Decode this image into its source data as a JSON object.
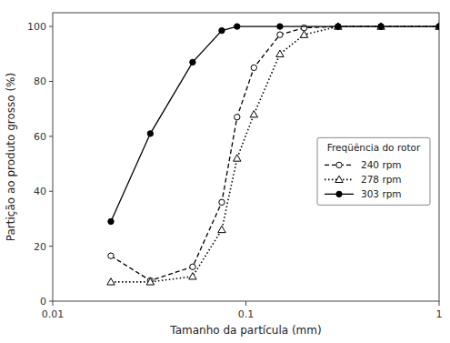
{
  "chart_data": {
    "type": "line",
    "xlabel": "Tamanho da partícula (mm)",
    "ylabel": "Partição ao produto grosso (%)",
    "legend_title": "Freqüência do rotor",
    "series": [
      {
        "name": "240 rpm",
        "color": "black",
        "marker": "open-circle",
        "line_style": "dashed",
        "x": [
          0.02,
          0.032,
          0.053,
          0.075,
          0.09,
          0.11,
          0.15,
          0.2,
          0.3,
          0.5,
          1.0
        ],
        "values": [
          16.5,
          7.5,
          12.5,
          36.0,
          67.0,
          85.0,
          97.0,
          99.5,
          100.0,
          100.0,
          100.0
        ]
      },
      {
        "name": "278 rpm",
        "color": "black",
        "marker": "open-triangle",
        "line_style": "dotted",
        "x": [
          0.02,
          0.032,
          0.053,
          0.075,
          0.09,
          0.11,
          0.15,
          0.2,
          0.3,
          0.5,
          1.0
        ],
        "values": [
          7.0,
          7.0,
          9.0,
          26.0,
          52.0,
          68.0,
          90.0,
          97.0,
          100.0,
          100.0,
          100.0
        ]
      },
      {
        "name": "303 rpm",
        "color": "black",
        "marker": "filled-circle",
        "line_style": "solid",
        "x": [
          0.02,
          0.032,
          0.053,
          0.075,
          0.09,
          0.15,
          0.3,
          0.5,
          1.0
        ],
        "values": [
          29.0,
          61.0,
          87.0,
          98.5,
          100.0,
          100.0,
          100.0,
          100.0,
          100.0
        ]
      }
    ],
    "xlim": [
      0.01,
      1.0
    ],
    "xticks": [
      0.01,
      0.1,
      1
    ],
    "ylim": [
      0,
      105
    ],
    "yticks": [
      0,
      20,
      40,
      60,
      80,
      100
    ],
    "log": "x",
    "grid": false,
    "legend": "right"
  }
}
